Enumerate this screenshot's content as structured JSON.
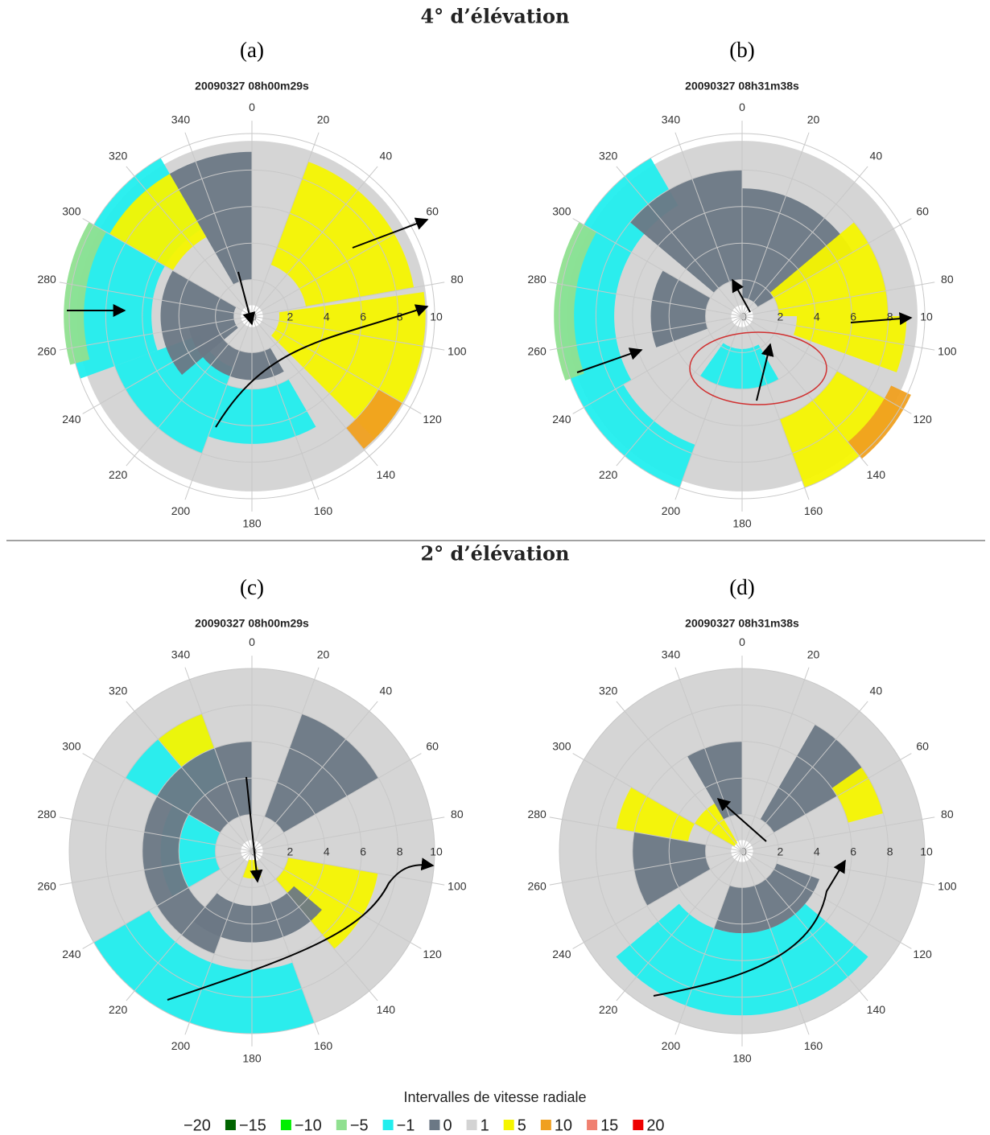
{
  "sections": [
    {
      "title": "4° d’élévation",
      "panels": [
        {
          "label": "(a)",
          "title": "20090327 08h00m29s"
        },
        {
          "label": "(b)",
          "title": "20090327 08h31m38s"
        }
      ]
    },
    {
      "title": "2° d’élévation",
      "panels": [
        {
          "label": "(c)",
          "title": "20090327 08h00m29s"
        },
        {
          "label": "(d)",
          "title": "20090327 08h31m38s"
        }
      ]
    }
  ],
  "polar_axes": {
    "angle_labels": [
      "0",
      "20",
      "40",
      "60",
      "80",
      "100",
      "120",
      "140",
      "160",
      "180",
      "200",
      "220",
      "240",
      "260",
      "280",
      "300",
      "320",
      "340"
    ],
    "radius_labels": [
      "0",
      "2",
      "4",
      "6",
      "8",
      "10"
    ]
  },
  "legend": {
    "title": "Intervalles de vitesse radiale",
    "items": [
      {
        "label": "−20"
      },
      {
        "label": "−15",
        "color": "#006400"
      },
      {
        "label": "−10",
        "color": "#00ee00"
      },
      {
        "label": "−5",
        "color": "#90e090"
      },
      {
        "label": "−1",
        "color": "#22eeee"
      },
      {
        "label": "0",
        "color": "#6b7885"
      },
      {
        "label": "1",
        "color": "#d3d3d3"
      },
      {
        "label": "5",
        "color": "#f5f500"
      },
      {
        "label": "10",
        "color": "#f0a020"
      },
      {
        "label": "15",
        "color": "#f08070"
      },
      {
        "label": "20",
        "color": "#ee0000"
      }
    ]
  }
}
